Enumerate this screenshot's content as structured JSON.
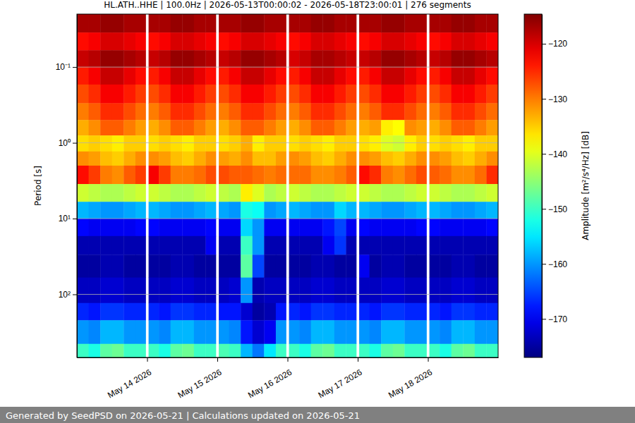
{
  "chart_data": {
    "type": "heatmap",
    "title": "HL.ATH..HHE | 100.0Hz | 2026-05-13T00:00:02 - 2026-05-18T23:00:01 | 276 segments",
    "y_label": "Period [s]",
    "footer": "Generated by SeedPSD on 2026-05-21 | Calculations updated on 2026-05-21",
    "log": "y",
    "grid": true,
    "xlim": [
      "2026-05-13T00:00",
      "2026-05-19T00:00"
    ],
    "xticks": [
      {
        "value": "2026-05-14T00:00",
        "label": "May 14 2026"
      },
      {
        "value": "2026-05-15T00:00",
        "label": "May 15 2026"
      },
      {
        "value": "2026-05-16T00:00",
        "label": "May 16 2026"
      },
      {
        "value": "2026-05-17T00:00",
        "label": "May 17 2026"
      },
      {
        "value": "2026-05-18T00:00",
        "label": "May 18 2026"
      }
    ],
    "ylim": [
      0.02,
      680
    ],
    "yticks": [
      {
        "value": 0.1,
        "label": "10⁻¹"
      },
      {
        "value": 1,
        "label": "10⁰"
      },
      {
        "value": 10,
        "label": "10¹"
      },
      {
        "value": 100,
        "label": "10²"
      }
    ],
    "x_bins": [
      "2026-05-13T00:00",
      "2026-05-13T04:00",
      "2026-05-13T08:00",
      "2026-05-13T12:00",
      "2026-05-13T16:00",
      "2026-05-13T20:00",
      "2026-05-13T23:30",
      "2026-05-14T00:30",
      "2026-05-14T04:00",
      "2026-05-14T08:00",
      "2026-05-14T12:00",
      "2026-05-14T16:00",
      "2026-05-14T20:00",
      "2026-05-14T23:30",
      "2026-05-15T00:30",
      "2026-05-15T04:00",
      "2026-05-15T08:00",
      "2026-05-15T12:00",
      "2026-05-15T16:00",
      "2026-05-15T20:00",
      "2026-05-15T23:30",
      "2026-05-16T00:30",
      "2026-05-16T04:00",
      "2026-05-16T08:00",
      "2026-05-16T12:00",
      "2026-05-16T16:00",
      "2026-05-16T20:00",
      "2026-05-16T23:30",
      "2026-05-17T00:30",
      "2026-05-17T04:00",
      "2026-05-17T08:00",
      "2026-05-17T12:00",
      "2026-05-17T16:00",
      "2026-05-17T20:00",
      "2026-05-17T23:30",
      "2026-05-18T00:30",
      "2026-05-18T04:00",
      "2026-05-18T08:00",
      "2026-05-18T12:00",
      "2026-05-18T16:00",
      "2026-05-18T20:00",
      "2026-05-19T00:00"
    ],
    "y_bins": [
      0.02,
      0.035,
      0.06,
      0.1,
      0.17,
      0.3,
      0.5,
      0.8,
      1.3,
      2,
      3.5,
      6,
      10,
      17,
      30,
      60,
      130,
      220,
      450,
      680
    ],
    "cells": [
      [
        -117,
        -117,
        -116,
        -116,
        -117,
        -117,
        null,
        -117,
        -117,
        -116,
        -116,
        -117,
        -117,
        null,
        -117,
        -117,
        -116,
        -116,
        -117,
        -117,
        null,
        -117,
        -117,
        -116,
        -116,
        -117,
        -117,
        null,
        -117,
        -117,
        -116,
        -116,
        -117,
        -117,
        null,
        -117,
        -117,
        -116,
        -116,
        -117,
        -117
      ],
      [
        -123,
        -122,
        -120,
        -120,
        -121,
        -122,
        null,
        -123,
        -122,
        -120,
        -120,
        -121,
        -122,
        null,
        -123,
        -122,
        -120,
        -120,
        -121,
        -122,
        null,
        -123,
        -122,
        -120,
        -120,
        -121,
        -122,
        null,
        -123,
        -122,
        -120,
        -120,
        -121,
        -122,
        null,
        -123,
        -122,
        -120,
        -120,
        -121,
        -122
      ],
      [
        -119,
        -118,
        -116,
        -116,
        -117,
        -118,
        null,
        -119,
        -118,
        -116,
        -116,
        -117,
        -118,
        null,
        -119,
        -118,
        -116,
        -116,
        -117,
        -118,
        null,
        -120,
        -119,
        -117,
        -117,
        -118,
        -119,
        null,
        -119,
        -118,
        -116,
        -116,
        -117,
        -118,
        null,
        -119,
        -118,
        -116,
        -116,
        -117,
        -118
      ],
      [
        -124,
        -122,
        -119,
        -119,
        -121,
        -123,
        null,
        -124,
        -122,
        -119,
        -119,
        -121,
        -123,
        null,
        -124,
        -122,
        -119,
        -119,
        -121,
        -123,
        null,
        -124,
        -122,
        -119,
        -119,
        -121,
        -123,
        null,
        -124,
        -122,
        -119,
        -119,
        -121,
        -123,
        null,
        -124,
        -122,
        -119,
        -119,
        -121,
        -123
      ],
      [
        -127,
        -125,
        -122,
        -122,
        -124,
        -126,
        null,
        -127,
        -125,
        -122,
        -122,
        -124,
        -126,
        null,
        -127,
        -125,
        -122,
        -122,
        -124,
        -126,
        null,
        -127,
        -125,
        -122,
        -122,
        -124,
        -126,
        null,
        -127,
        -125,
        -122,
        -122,
        -124,
        -126,
        null,
        -127,
        -125,
        -122,
        -122,
        -124,
        -126
      ],
      [
        -130,
        -128,
        -125,
        -125,
        -127,
        -129,
        null,
        -130,
        -128,
        -125,
        -125,
        -127,
        -129,
        null,
        -130,
        -128,
        -125,
        -125,
        -127,
        -129,
        null,
        -130,
        -128,
        -125,
        -125,
        -127,
        -129,
        null,
        -130,
        -128,
        -125,
        -125,
        -127,
        -129,
        null,
        -130,
        -128,
        -125,
        -125,
        -127,
        -129
      ],
      [
        -133,
        -131,
        -128,
        -128,
        -130,
        -132,
        null,
        -133,
        -131,
        -128,
        -128,
        -130,
        -132,
        null,
        -133,
        -131,
        -128,
        -128,
        -130,
        -132,
        null,
        -133,
        -131,
        -128,
        -128,
        -130,
        -132,
        null,
        -133,
        -132,
        -137,
        -138,
        -131,
        -132,
        null,
        -133,
        -131,
        -128,
        -128,
        -130,
        -132
      ],
      [
        -136,
        -135,
        -136,
        -137,
        -135,
        -135,
        null,
        -136,
        -135,
        -136,
        -137,
        -135,
        -135,
        null,
        -136,
        -135,
        -133,
        -137,
        -135,
        -135,
        null,
        -136,
        -135,
        -136,
        -137,
        -135,
        -135,
        null,
        -136,
        -137,
        -140,
        -141,
        -137,
        -135,
        null,
        -136,
        -135,
        -136,
        -137,
        -135,
        -135
      ],
      [
        -131,
        -132,
        -134,
        -135,
        -133,
        -131,
        null,
        -131,
        -132,
        -134,
        -135,
        -133,
        -131,
        null,
        -132,
        -133,
        -131,
        -134,
        -134,
        -132,
        null,
        -131,
        -132,
        -134,
        -135,
        -133,
        -131,
        null,
        -131,
        -132,
        -134,
        -135,
        -133,
        -131,
        null,
        -131,
        -132,
        -134,
        -135,
        -133,
        -131
      ],
      [
        -123,
        -126,
        -130,
        -131,
        -128,
        -126,
        null,
        -122,
        -126,
        -130,
        -130,
        -129,
        -127,
        null,
        -127,
        -128,
        -128,
        -129,
        -130,
        -129,
        null,
        -129,
        -129,
        -131,
        -131,
        -130,
        -128,
        null,
        -123,
        -125,
        -130,
        -131,
        -129,
        -127,
        null,
        -128,
        -129,
        -131,
        -131,
        -129,
        -125
      ],
      [
        -141,
        -142,
        -143,
        -143,
        -142,
        -141,
        null,
        -141,
        -142,
        -143,
        -143,
        -142,
        -141,
        null,
        -142,
        -143,
        -137,
        -140,
        -143,
        -142,
        null,
        -141,
        -142,
        -143,
        -143,
        -142,
        -141,
        null,
        -141,
        -142,
        -143,
        -143,
        -142,
        -141,
        null,
        -141,
        -142,
        -143,
        -143,
        -142,
        -141
      ],
      [
        -158,
        -159,
        -160,
        -160,
        -159,
        -158,
        null,
        -158,
        -159,
        -160,
        -160,
        -159,
        -158,
        null,
        -159,
        -160,
        -152,
        -153,
        -160,
        -159,
        null,
        -158,
        -159,
        -160,
        -160,
        -156,
        -158,
        null,
        -158,
        -159,
        -160,
        -160,
        -159,
        -158,
        null,
        -158,
        -159,
        -160,
        -160,
        -159,
        -158
      ],
      [
        -169,
        -170,
        -170,
        -170,
        -170,
        -169,
        null,
        -169,
        -170,
        -170,
        -170,
        -170,
        -169,
        null,
        -170,
        -170,
        -156,
        -160,
        -170,
        -170,
        null,
        -170,
        -170,
        -170,
        -168,
        -165,
        -170,
        null,
        -169,
        -170,
        -170,
        -170,
        -170,
        -169,
        null,
        -169,
        -170,
        -170,
        -170,
        -170,
        -169
      ],
      [
        -174,
        -174,
        -174,
        -174,
        -174,
        -174,
        null,
        -174,
        -174,
        -174,
        -174,
        -174,
        -170,
        null,
        -174,
        -174,
        -150,
        -160,
        -174,
        -174,
        null,
        -174,
        -174,
        -174,
        -170,
        -166,
        -174,
        null,
        -174,
        -174,
        -174,
        -174,
        -174,
        -174,
        null,
        -174,
        -174,
        -174,
        -174,
        -174,
        -174
      ],
      [
        -175,
        -175,
        -174,
        -174,
        -175,
        -175,
        null,
        -175,
        -175,
        -174,
        -174,
        -175,
        -175,
        null,
        -175,
        -175,
        -148,
        -165,
        -175,
        -175,
        null,
        -175,
        -175,
        -174,
        -174,
        -175,
        -175,
        null,
        -170,
        -175,
        -174,
        -174,
        -175,
        -175,
        null,
        -175,
        -175,
        -174,
        -174,
        -175,
        -175
      ],
      [
        -173,
        -173,
        -172,
        -172,
        -173,
        -173,
        null,
        -173,
        -173,
        -172,
        -172,
        -173,
        -173,
        null,
        -173,
        -172,
        -160,
        -174,
        -173,
        -173,
        null,
        -173,
        -173,
        -172,
        -172,
        -173,
        -173,
        null,
        -173,
        -173,
        -172,
        -172,
        -173,
        -173,
        null,
        -173,
        -173,
        -172,
        -172,
        -173,
        -173
      ],
      [
        -167,
        -168,
        -166,
        -166,
        -167,
        -167,
        null,
        -167,
        -168,
        -166,
        -166,
        -167,
        -167,
        null,
        -168,
        -168,
        -172,
        -175,
        -174,
        -168,
        null,
        -167,
        -168,
        -166,
        -166,
        -167,
        -167,
        null,
        -167,
        -168,
        -166,
        -166,
        -167,
        -167,
        null,
        -167,
        -168,
        -166,
        -166,
        -167,
        -167
      ],
      [
        -160,
        -161,
        -158,
        -158,
        -160,
        -160,
        null,
        -160,
        -161,
        -158,
        -158,
        -160,
        -160,
        null,
        -160,
        -161,
        -168,
        -172,
        -170,
        -160,
        null,
        -160,
        -161,
        -158,
        -158,
        -160,
        -160,
        null,
        -160,
        -161,
        -158,
        -158,
        -160,
        -160,
        null,
        -160,
        -161,
        -158,
        -158,
        -160,
        -160
      ],
      [
        -150,
        -152,
        -148,
        -147,
        -150,
        -150,
        null,
        -150,
        -152,
        -148,
        -147,
        -150,
        -150,
        null,
        -149,
        -150,
        -158,
        -162,
        -155,
        -150,
        null,
        -150,
        -152,
        -148,
        -147,
        -150,
        -150,
        null,
        -150,
        -152,
        -148,
        -147,
        -150,
        -150,
        null,
        -150,
        -152,
        -148,
        -147,
        -150,
        -150
      ]
    ],
    "colorbar": {
      "label": "Amplitude [m²/s⁴/Hz] [dB]",
      "range": [
        -177,
        -114.6
      ],
      "ticks": [
        -120,
        -130,
        -140,
        -150,
        -160,
        -170
      ]
    }
  }
}
